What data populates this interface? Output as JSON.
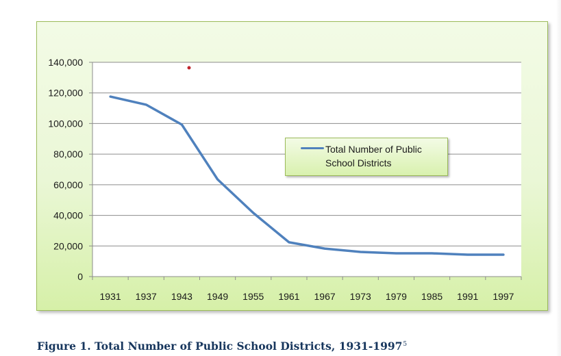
{
  "caption": {
    "text": "Figure 1. Total Number of Public School Districts, 1931-1997",
    "footnote": "5"
  },
  "legend": {
    "label": "Total Number of Public School Districts"
  },
  "colors": {
    "series": "#4f81bd",
    "marker": "#c0262d",
    "frame_border": "#9bbb59",
    "caption": "#17365d"
  },
  "chart_data": {
    "type": "line",
    "title": "",
    "xlabel": "",
    "ylabel": "",
    "categories": [
      "1931",
      "1937",
      "1943",
      "1949",
      "1955",
      "1961",
      "1967",
      "1973",
      "1979",
      "1985",
      "1991",
      "1997"
    ],
    "series": [
      {
        "name": "Total Number of Public School Districts",
        "values": [
          117600,
          112300,
          99300,
          63500,
          41600,
          22400,
          18300,
          16100,
          15200,
          15200,
          14300,
          14300
        ]
      }
    ],
    "yticks": [
      "0",
      "20,000",
      "40,000",
      "60,000",
      "80,000",
      "100,000",
      "120,000",
      "140,000"
    ],
    "ylim": [
      0,
      140000
    ],
    "grid": true,
    "legend_position": "inside-right"
  }
}
